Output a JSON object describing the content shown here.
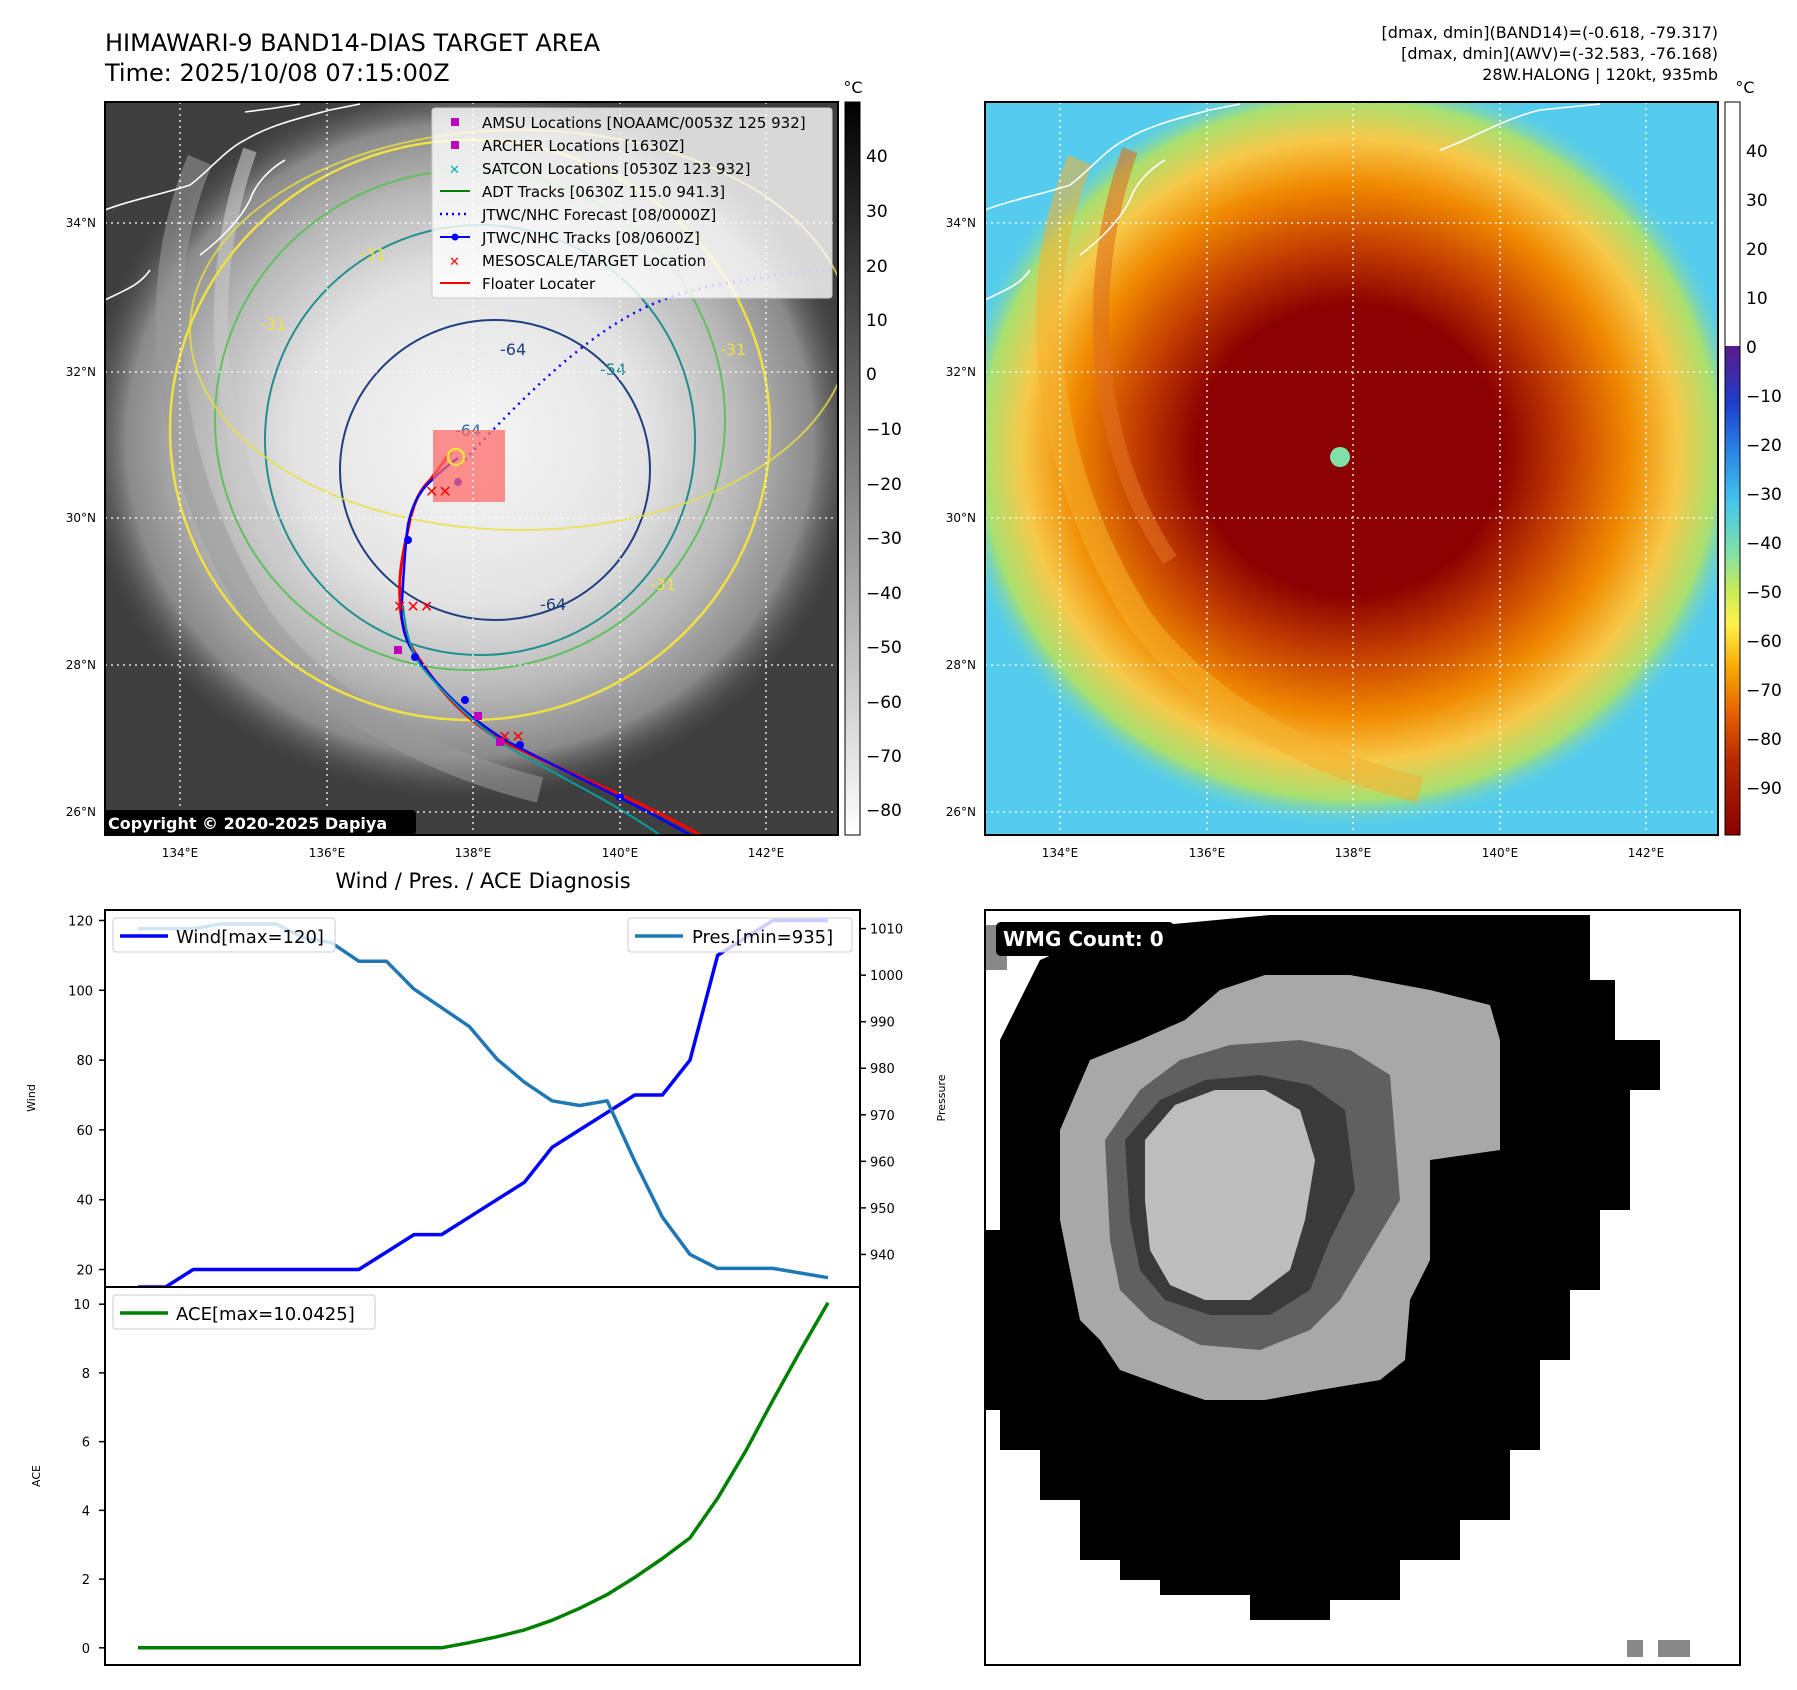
{
  "header": {
    "title_line1": "HIMAWARI-9 BAND14-DIAS TARGET AREA",
    "title_line2": "Time: 2025/10/08 07:15:00Z",
    "stats_line1": "[dmax, dmin](BAND14)=(-0.618, -79.317)",
    "stats_line2": "[dmax, dmin](AWV)=(-32.583, -76.168)",
    "stats_line3": "28W.HALONG | 120kt, 935mb"
  },
  "map_axes": {
    "lon_ticks": [
      "134°E",
      "136°E",
      "138°E",
      "140°E",
      "142°E"
    ],
    "lat_ticks": [
      "34°N",
      "32°N",
      "30°N",
      "28°N",
      "26°N"
    ]
  },
  "left_map": {
    "copyright": "Copyright © 2020-2025 Dapiya",
    "contour_labels": [
      "-31",
      "-31",
      "-31",
      "-64",
      "-64",
      "-64",
      "-54",
      "-31"
    ],
    "legend": [
      {
        "label": "AMSU Locations [NOAAMC/0053Z 125 932]",
        "color": "#c000c0",
        "marker": "square"
      },
      {
        "label": "ARCHER Locations [1630Z]",
        "color": "#c000c0",
        "marker": "square"
      },
      {
        "label": "SATCON Locations [0530Z 123 932]",
        "color": "#00b0b0",
        "marker": "x"
      },
      {
        "label": "ADT Tracks [0630Z 115.0 941.3]",
        "color": "#008000",
        "marker": "line"
      },
      {
        "label": "JTWC/NHC Forecast [08/0000Z]",
        "color": "#0000ff",
        "marker": "dotted"
      },
      {
        "label": "JTWC/NHC Tracks [08/0600Z]",
        "color": "#0000ff",
        "marker": "line-dot"
      },
      {
        "label": "MESOSCALE/TARGET Location",
        "color": "#ff0000",
        "marker": "x"
      },
      {
        "label": "Floater Locater",
        "color": "#ff0000",
        "marker": "line"
      }
    ]
  },
  "colorbars": {
    "unit": "°C",
    "gray_ticks": [
      "40",
      "30",
      "20",
      "10",
      "0",
      "−10",
      "−20",
      "−30",
      "−40",
      "−50",
      "−60",
      "−70",
      "−80"
    ],
    "color_ticks": [
      "40",
      "30",
      "20",
      "10",
      "0",
      "−10",
      "−20",
      "−30",
      "−40",
      "−50",
      "−60",
      "−70",
      "−80",
      "−90"
    ]
  },
  "wmg": {
    "label": "WMG Count: 0"
  },
  "chart_data": [
    {
      "type": "line",
      "title": "Wind / Pres. / ACE Diagnosis",
      "ylabel": "Wind",
      "ylabel_right": "Pressure",
      "ylim": [
        15,
        123
      ],
      "ylim_right": [
        933,
        1014
      ],
      "yticks": [
        "20",
        "40",
        "60",
        "80",
        "100",
        "120"
      ],
      "yticks_right": [
        "940",
        "950",
        "960",
        "970",
        "980",
        "990",
        "1000",
        "1010"
      ],
      "x": [
        0,
        1,
        2,
        3,
        4,
        5,
        6,
        7,
        8,
        9,
        10,
        11,
        12,
        13,
        14,
        15,
        16,
        17,
        18,
        19,
        20,
        21,
        22,
        23,
        24,
        25
      ],
      "series": [
        {
          "name": "Wind[max=120]",
          "color": "#0000ff",
          "axis": "left",
          "values": [
            15,
            15,
            20,
            20,
            20,
            20,
            20,
            20,
            20,
            25,
            30,
            30,
            35,
            40,
            45,
            55,
            60,
            65,
            70,
            70,
            80,
            110,
            115,
            120,
            120,
            120
          ]
        },
        {
          "name": "Pres.[min=935]",
          "color": "#1f77b4",
          "axis": "right",
          "values": [
            1010,
            1010,
            1010,
            1011,
            1011,
            1011,
            1008,
            1007,
            1003,
            1003,
            997,
            993,
            989,
            982,
            977,
            973,
            972,
            973,
            960,
            948,
            940,
            937,
            937,
            937,
            936,
            935
          ]
        }
      ]
    },
    {
      "type": "line",
      "ylabel": "ACE",
      "ylim": [
        -0.5,
        10.5
      ],
      "yticks": [
        "0",
        "2",
        "4",
        "6",
        "8",
        "10"
      ],
      "x": [
        0,
        1,
        2,
        3,
        4,
        5,
        6,
        7,
        8,
        9,
        10,
        11,
        12,
        13,
        14,
        15,
        16,
        17,
        18,
        19,
        20,
        21,
        22,
        23,
        24,
        25
      ],
      "series": [
        {
          "name": "ACE[max=10.0425]",
          "color": "#008000",
          "values": [
            0,
            0,
            0,
            0,
            0,
            0,
            0,
            0,
            0,
            0,
            0,
            0,
            0.15,
            0.32,
            0.52,
            0.8,
            1.15,
            1.55,
            2.05,
            2.6,
            3.2,
            4.35,
            5.7,
            7.2,
            8.65,
            10.0425
          ]
        }
      ]
    }
  ]
}
